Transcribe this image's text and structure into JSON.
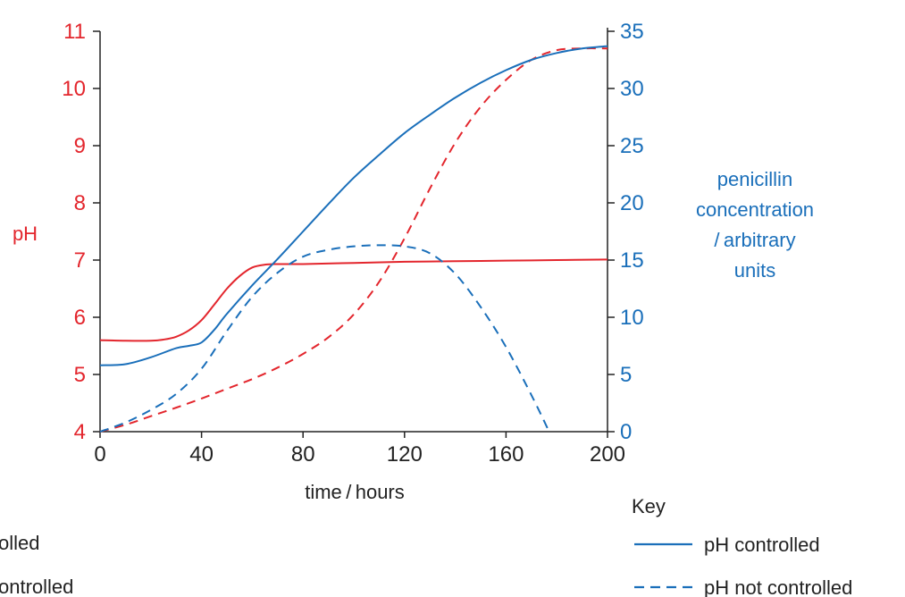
{
  "colors": {
    "ph_axis": "#e3262d",
    "penicillin_axis": "#1a6fba",
    "axis_line": "#222222",
    "text": "#222222"
  },
  "chart_data": {
    "type": "line",
    "x": {
      "label": "time / hours",
      "range": [
        0,
        200
      ],
      "ticks": [
        0,
        40,
        80,
        120,
        160,
        200
      ]
    },
    "y_left": {
      "label": "pH",
      "range": [
        4,
        11
      ],
      "ticks": [
        4,
        5,
        6,
        7,
        8,
        9,
        10,
        11
      ]
    },
    "y_right": {
      "label_lines": [
        "penicillin",
        "concentration",
        "/ arbitrary",
        "units"
      ],
      "range": [
        0,
        35
      ],
      "ticks": [
        0,
        5,
        10,
        15,
        20,
        25,
        30,
        35
      ]
    },
    "series": [
      {
        "name": "pH controlled",
        "variable": "pH",
        "axis": "left",
        "dash": "solid",
        "points": [
          [
            0,
            5.6
          ],
          [
            10,
            5.59
          ],
          [
            20,
            5.59
          ],
          [
            25,
            5.61
          ],
          [
            30,
            5.66
          ],
          [
            35,
            5.77
          ],
          [
            40,
            5.95
          ],
          [
            45,
            6.22
          ],
          [
            50,
            6.5
          ],
          [
            55,
            6.72
          ],
          [
            60,
            6.87
          ],
          [
            65,
            6.92
          ],
          [
            70,
            6.93
          ],
          [
            80,
            6.93
          ],
          [
            100,
            6.95
          ],
          [
            120,
            6.97
          ],
          [
            140,
            6.98
          ],
          [
            160,
            6.99
          ],
          [
            180,
            7.0
          ],
          [
            200,
            7.01
          ]
        ]
      },
      {
        "name": "pH not controlled",
        "variable": "pH",
        "axis": "left",
        "dash": "dashed",
        "points": [
          [
            0,
            4.0
          ],
          [
            10,
            4.12
          ],
          [
            20,
            4.27
          ],
          [
            30,
            4.42
          ],
          [
            40,
            4.58
          ],
          [
            50,
            4.75
          ],
          [
            60,
            4.92
          ],
          [
            70,
            5.12
          ],
          [
            80,
            5.36
          ],
          [
            90,
            5.65
          ],
          [
            100,
            6.05
          ],
          [
            110,
            6.62
          ],
          [
            120,
            7.38
          ],
          [
            130,
            8.25
          ],
          [
            140,
            9.05
          ],
          [
            150,
            9.68
          ],
          [
            160,
            10.15
          ],
          [
            170,
            10.5
          ],
          [
            180,
            10.67
          ],
          [
            190,
            10.7
          ],
          [
            200,
            10.7
          ]
        ]
      },
      {
        "name": "pH controlled",
        "variable": "penicillin concentration",
        "axis": "right",
        "dash": "solid",
        "points": [
          [
            0,
            5.8
          ],
          [
            10,
            5.9
          ],
          [
            20,
            6.5
          ],
          [
            30,
            7.3
          ],
          [
            35,
            7.5
          ],
          [
            40,
            7.8
          ],
          [
            45,
            8.9
          ],
          [
            50,
            10.3
          ],
          [
            60,
            12.8
          ],
          [
            70,
            15.1
          ],
          [
            80,
            17.5
          ],
          [
            90,
            19.9
          ],
          [
            100,
            22.2
          ],
          [
            110,
            24.2
          ],
          [
            120,
            26.1
          ],
          [
            130,
            27.7
          ],
          [
            140,
            29.2
          ],
          [
            150,
            30.5
          ],
          [
            160,
            31.6
          ],
          [
            170,
            32.5
          ],
          [
            180,
            33.1
          ],
          [
            190,
            33.5
          ],
          [
            200,
            33.7
          ]
        ]
      },
      {
        "name": "pH not controlled",
        "variable": "penicillin concentration",
        "axis": "right",
        "dash": "dashed",
        "points": [
          [
            0,
            0.0
          ],
          [
            10,
            0.8
          ],
          [
            20,
            1.9
          ],
          [
            30,
            3.3
          ],
          [
            40,
            5.5
          ],
          [
            50,
            8.8
          ],
          [
            60,
            11.8
          ],
          [
            70,
            13.9
          ],
          [
            80,
            15.3
          ],
          [
            90,
            15.9
          ],
          [
            100,
            16.2
          ],
          [
            110,
            16.3
          ],
          [
            120,
            16.2
          ],
          [
            130,
            15.6
          ],
          [
            140,
            13.8
          ],
          [
            150,
            10.9
          ],
          [
            160,
            7.4
          ],
          [
            170,
            3.2
          ],
          [
            177,
            0.0
          ]
        ]
      }
    ],
    "legend": {
      "title": "Key",
      "placement": "bottom-right",
      "items": [
        {
          "label": "pH controlled",
          "dash": "solid"
        },
        {
          "label": "pH not controlled",
          "dash": "dashed"
        }
      ],
      "cropped_left_items": [
        "olled",
        "ontrolled"
      ]
    },
    "grid": false
  }
}
